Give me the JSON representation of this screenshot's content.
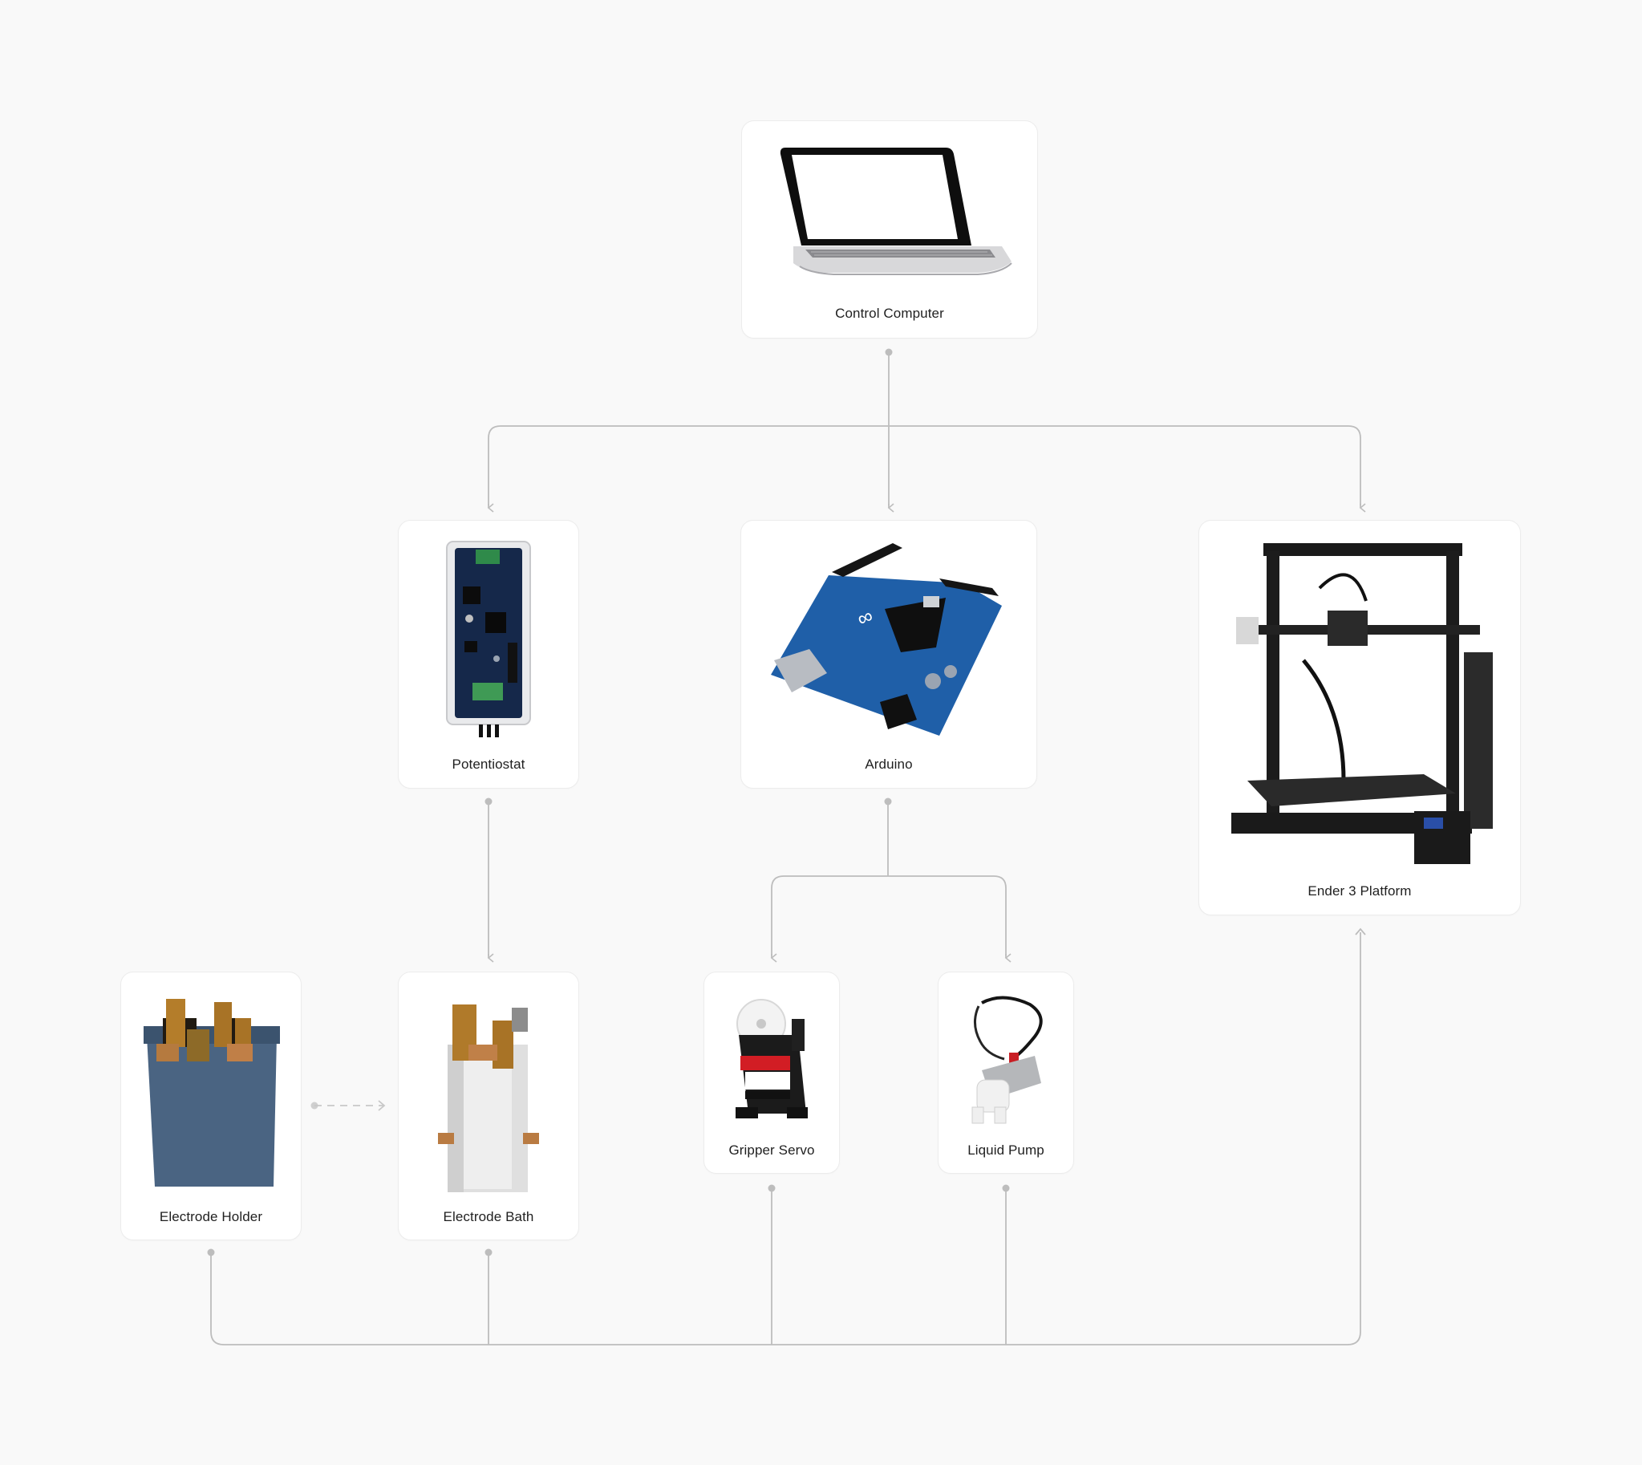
{
  "colors": {
    "background": "#f9f9f9",
    "card": "#ffffff",
    "card_border": "#ececec",
    "connector": "#bdbdbd",
    "label": "#1f1f1f"
  },
  "nodes": {
    "control_computer": {
      "label": "Control Computer",
      "icon": "laptop-image"
    },
    "potentiostat": {
      "label": "Potentiostat",
      "icon": "potentiostat-board-image"
    },
    "arduino": {
      "label": "Arduino",
      "icon": "arduino-board-image"
    },
    "ender": {
      "label": "Ender 3 Platform",
      "icon": "3d-printer-image"
    },
    "electrode_holder": {
      "label": "Electrode Holder",
      "icon": "electrode-holder-image"
    },
    "electrode_bath": {
      "label": "Electrode Bath",
      "icon": "electrode-bath-image"
    },
    "gripper_servo": {
      "label": "Gripper Servo",
      "icon": "servo-motor-image"
    },
    "liquid_pump": {
      "label": "Liquid Pump",
      "icon": "liquid-pump-image"
    }
  },
  "edges": [
    {
      "from": "Control Computer",
      "to": "Potentiostat",
      "style": "solid"
    },
    {
      "from": "Control Computer",
      "to": "Arduino",
      "style": "solid"
    },
    {
      "from": "Control Computer",
      "to": "Ender 3 Platform",
      "style": "solid"
    },
    {
      "from": "Potentiostat",
      "to": "Electrode Bath",
      "style": "solid"
    },
    {
      "from": "Arduino",
      "to": "Gripper Servo",
      "style": "solid"
    },
    {
      "from": "Arduino",
      "to": "Liquid Pump",
      "style": "solid"
    },
    {
      "from": "Electrode Holder",
      "to": "Electrode Bath",
      "style": "dashed"
    },
    {
      "from": "Electrode Holder",
      "to": "Ender 3 Platform",
      "style": "solid"
    },
    {
      "from": "Electrode Bath",
      "to": "Ender 3 Platform",
      "style": "solid"
    },
    {
      "from": "Gripper Servo",
      "to": "Ender 3 Platform",
      "style": "solid"
    },
    {
      "from": "Liquid Pump",
      "to": "Ender 3 Platform",
      "style": "solid"
    }
  ]
}
